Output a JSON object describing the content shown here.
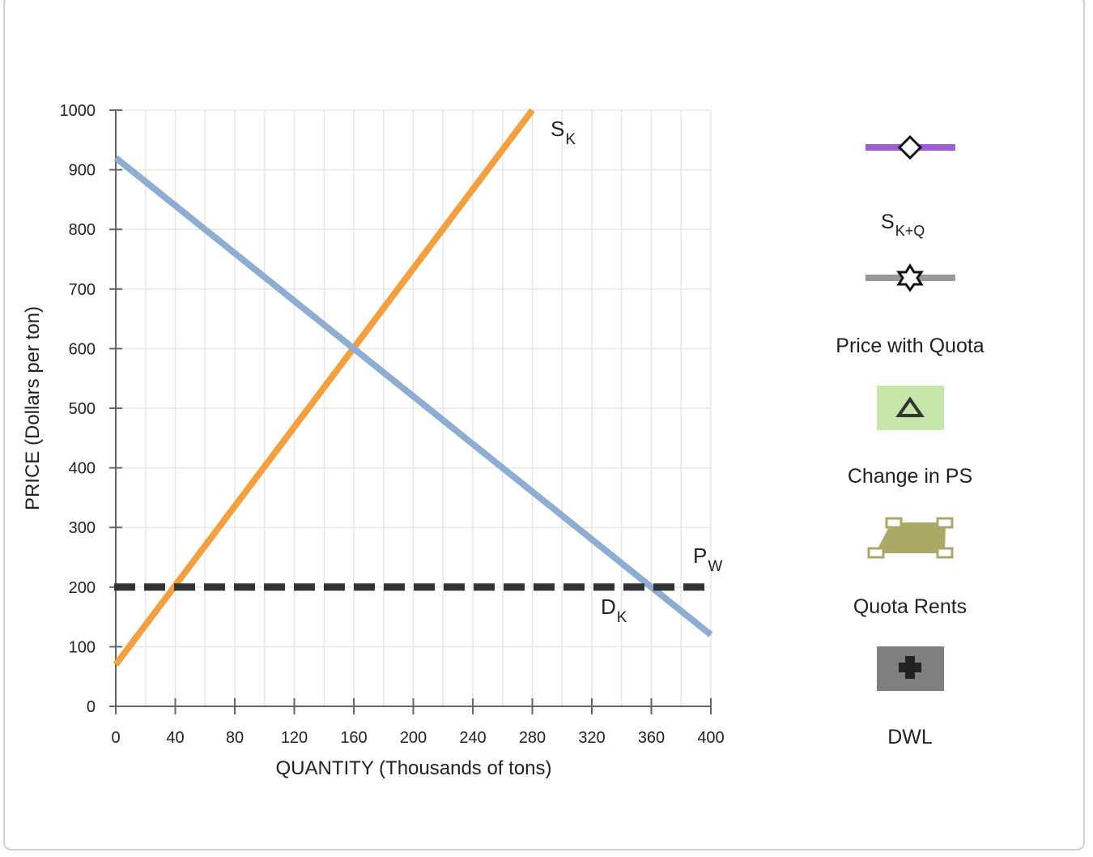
{
  "chart_data": {
    "type": "line",
    "xlabel": "QUANTITY (Thousands of tons)",
    "ylabel": "PRICE (Dollars per ton)",
    "xlim": [
      0,
      400
    ],
    "ylim": [
      0,
      1000
    ],
    "x_ticks": [
      0,
      40,
      80,
      120,
      160,
      200,
      240,
      280,
      320,
      360,
      400
    ],
    "y_ticks": [
      0,
      100,
      200,
      300,
      400,
      500,
      600,
      700,
      800,
      900,
      1000
    ],
    "grid": true,
    "series": [
      {
        "key": "supply",
        "label_main": "S",
        "label_sub": "K",
        "color": "#f4a03f",
        "style": "solid",
        "x": [
          0,
          280
        ],
        "y": [
          70,
          1000
        ]
      },
      {
        "key": "demand",
        "label_main": "D",
        "label_sub": "K",
        "color": "#8dadd3",
        "style": "solid",
        "x": [
          0,
          400
        ],
        "y": [
          920,
          120
        ]
      },
      {
        "key": "world",
        "label_main": "P",
        "label_sub": "W",
        "color": "#333333",
        "style": "dashed",
        "x": [
          0,
          396
        ],
        "y": [
          200,
          200
        ]
      }
    ]
  },
  "legend": {
    "items": [
      {
        "key": "s_k_q",
        "label_main": "S",
        "label_sub": "K+Q",
        "icon": "diamond-line-icon",
        "color": "#9c5fd6"
      },
      {
        "key": "price_quota",
        "label_main": "Price with Quota",
        "icon": "star-line-icon",
        "color": "#999999"
      },
      {
        "key": "change_ps",
        "label_main": "Change in PS",
        "icon": "triangle-area-icon",
        "color": "#c5e6a8"
      },
      {
        "key": "quota_rents",
        "label_main": "Quota Rents",
        "icon": "trapezoid-area-icon",
        "color": "#aaaa66"
      },
      {
        "key": "dwl",
        "label_main": "DWL",
        "icon": "plus-area-icon",
        "color": "#7f7f7f"
      }
    ]
  }
}
